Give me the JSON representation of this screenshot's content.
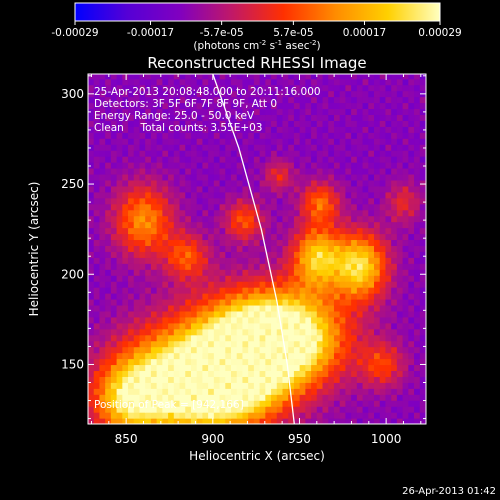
{
  "chart_data": {
    "type": "heatmap",
    "title": "Reconstructed RHESSI Image",
    "xlabel": "Heliocentric X (arcsec)",
    "ylabel": "Heliocentric Y (arcsec)",
    "xlim": [
      828,
      1023
    ],
    "ylim": [
      117,
      311
    ],
    "x_ticks": [
      850,
      900,
      950,
      1000
    ],
    "y_ticks": [
      150,
      200,
      250,
      300
    ],
    "colorbar": {
      "min": -0.00029,
      "max": 0.00029,
      "tick_values": [
        -0.00029,
        -0.00017,
        -5.7e-05,
        5.7e-05,
        0.00017,
        0.00029
      ],
      "tick_labels": [
        "-0.00029",
        "-0.00017",
        "-5.7e-05",
        "5.7e-05",
        "0.00017",
        "0.00029"
      ],
      "unit_parts": [
        "(photons cm",
        "-2",
        " s",
        "-1",
        " asec",
        "-2",
        ")"
      ],
      "colors": [
        "#0000ff",
        "#5500d6",
        "#8000c0",
        "#c01868",
        "#ff3000",
        "#ff8c00",
        "#ffd000",
        "#ffffc0"
      ]
    },
    "annotations": [
      "25-Apr-2013 20:08:48.000 to 20:11:16.000",
      "Detectors: 3F 5F 6F 7F 8F 9F, Att 0",
      "Energy Range: 25.0 - 50.0 keV",
      "Clean     Total counts: 3.55E+03"
    ],
    "peak_label": "Position of Peak = [942,166]",
    "peak": [
      942,
      166
    ],
    "limb_line": [
      [
        900,
        311
      ],
      [
        915,
        270
      ],
      [
        928,
        225
      ],
      [
        937,
        185
      ],
      [
        943,
        150
      ],
      [
        947,
        117
      ]
    ],
    "sources": [
      {
        "x": 942,
        "y": 166,
        "a": 1.0,
        "sx": 24,
        "sy": 18
      },
      {
        "x": 915,
        "y": 158,
        "a": 0.9,
        "sx": 26,
        "sy": 20
      },
      {
        "x": 905,
        "y": 135,
        "a": 0.85,
        "sx": 22,
        "sy": 16
      },
      {
        "x": 870,
        "y": 140,
        "a": 0.75,
        "sx": 22,
        "sy": 20
      },
      {
        "x": 850,
        "y": 130,
        "a": 0.55,
        "sx": 14,
        "sy": 14
      },
      {
        "x": 985,
        "y": 205,
        "a": 0.85,
        "sx": 11,
        "sy": 13
      },
      {
        "x": 960,
        "y": 210,
        "a": 0.75,
        "sx": 10,
        "sy": 12
      },
      {
        "x": 962,
        "y": 240,
        "a": 0.5,
        "sx": 8,
        "sy": 8
      },
      {
        "x": 860,
        "y": 230,
        "a": 0.6,
        "sx": 12,
        "sy": 14
      },
      {
        "x": 885,
        "y": 210,
        "a": 0.45,
        "sx": 9,
        "sy": 9
      },
      {
        "x": 918,
        "y": 230,
        "a": 0.45,
        "sx": 8,
        "sy": 8
      },
      {
        "x": 938,
        "y": 255,
        "a": 0.32,
        "sx": 6,
        "sy": 6
      },
      {
        "x": 998,
        "y": 150,
        "a": 0.38,
        "sx": 9,
        "sy": 9
      },
      {
        "x": 1010,
        "y": 240,
        "a": 0.3,
        "sx": 7,
        "sy": 8
      }
    ],
    "grid": false
  },
  "footer": {
    "timestamp": "26-Apr-2013 01:42"
  }
}
